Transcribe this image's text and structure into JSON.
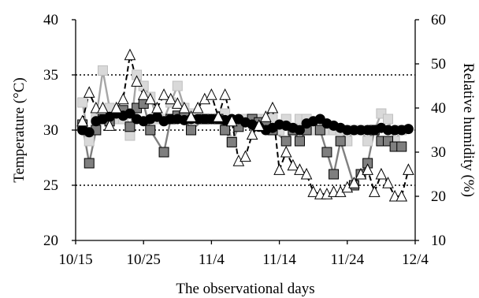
{
  "chart_data": {
    "type": "line",
    "xlabel": "The observational days",
    "ylabel": "Temperature (°C)",
    "y2label": "Relative humidity (%)",
    "x_ticks": [
      "10/15",
      "10/25",
      "11/4",
      "11/14",
      "11/24",
      "12/4"
    ],
    "y_ticks": [
      "20",
      "25",
      "30",
      "35",
      "40"
    ],
    "y2_ticks": [
      "10",
      "20",
      "30",
      "40",
      "50",
      "60"
    ],
    "xlim": [
      0,
      50
    ],
    "ylim": [
      20,
      40
    ],
    "y2lim": [
      10,
      60
    ],
    "reference_lines_temperature": [
      25,
      30,
      35
    ],
    "grid": false,
    "series": [
      {
        "axis": "temperature",
        "marker": "circle",
        "line_style": "solid",
        "color": "#000000",
        "x": [
          1,
          2,
          3,
          4,
          5,
          6,
          7,
          8,
          9,
          10,
          11,
          12,
          13,
          14,
          15,
          16,
          17,
          18,
          19,
          20,
          21,
          22,
          23,
          24,
          25,
          26,
          27,
          28,
          29,
          30,
          31,
          32,
          33,
          34,
          35,
          36,
          37,
          38,
          39,
          40,
          41,
          42,
          43,
          44,
          45,
          46,
          47,
          48,
          49
        ],
        "y": [
          30.0,
          29.8,
          30.8,
          31.0,
          31.2,
          31.5,
          31.3,
          31.5,
          31.0,
          30.8,
          31.0,
          31.2,
          30.8,
          31.0,
          31.0,
          30.9,
          31.0,
          31.0,
          31.0,
          31.0,
          31.0,
          30.9,
          31.0,
          31.0,
          30.7,
          30.5,
          30.3,
          30.0,
          30.2,
          30.5,
          30.4,
          30.2,
          30.0,
          30.6,
          30.8,
          31.0,
          30.6,
          30.4,
          30.2,
          30.0,
          30.0,
          30.0,
          30.0,
          30.0,
          30.2,
          30.0,
          30.0,
          30.0,
          30.1
        ]
      },
      {
        "axis": "temperature",
        "marker": "square",
        "line_style": "solid",
        "color": "#808080",
        "x": [
          1,
          2,
          3,
          4,
          5,
          7,
          8,
          9,
          10,
          11,
          13,
          14,
          15,
          16,
          17,
          19,
          21,
          22,
          23,
          24,
          26,
          27,
          28,
          29,
          31,
          32,
          33,
          34,
          36,
          37,
          38,
          39,
          41,
          42,
          43,
          44,
          45,
          46,
          47,
          48
        ],
        "y": [
          30.5,
          27.0,
          30.0,
          31.0,
          30.8,
          31.8,
          30.3,
          32.0,
          32.4,
          30.0,
          28.0,
          31.0,
          31.3,
          31.2,
          30.0,
          31.0,
          31.0,
          30.0,
          28.9,
          30.3,
          31.0,
          30.7,
          30.4,
          30.0,
          29.0,
          30.0,
          29.0,
          30.0,
          30.0,
          28.0,
          26.0,
          29.0,
          25.0,
          26.0,
          27.0,
          30.0,
          29.0,
          29.0,
          28.5,
          28.5
        ]
      },
      {
        "axis": "temperature",
        "marker": "square-light",
        "line_style": "solid",
        "color": "#a6a6a6",
        "x": [
          1,
          2,
          3,
          4,
          5,
          6,
          7,
          8,
          9,
          10,
          11,
          12,
          13,
          14,
          15,
          16,
          17,
          18,
          19,
          20,
          21,
          22,
          23,
          24,
          25,
          26,
          27,
          28,
          29,
          30,
          31,
          32,
          33,
          34,
          35,
          36,
          37,
          38,
          39,
          40,
          41,
          42,
          43,
          44,
          45,
          46,
          47,
          48
        ],
        "y": [
          32.5,
          29.0,
          31.0,
          35.4,
          32.0,
          31.0,
          31.0,
          29.5,
          35.0,
          34.0,
          33.0,
          31.0,
          31.0,
          32.5,
          34.0,
          32.0,
          31.5,
          31.0,
          31.0,
          31.0,
          31.0,
          31.5,
          29.0,
          30.5,
          31.0,
          31.0,
          31.0,
          31.0,
          31.0,
          30.0,
          31.0,
          30.0,
          31.0,
          31.0,
          30.0,
          30.0,
          30.0,
          30.0,
          30.0,
          29.0,
          30.0,
          30.0,
          29.0,
          30.0,
          31.5,
          31.0,
          29.0,
          30.0
        ]
      },
      {
        "axis": "humidity",
        "marker": "triangle",
        "line_style": "dashed",
        "color": "#000000",
        "x": [
          1,
          2,
          3,
          4,
          5,
          6,
          7,
          8,
          9,
          10,
          11,
          12,
          13,
          14,
          15,
          16,
          17,
          18,
          19,
          20,
          21,
          22,
          23,
          24,
          25,
          26,
          27,
          28,
          29,
          30,
          31,
          32,
          33,
          34,
          35,
          36,
          37,
          38,
          39,
          40,
          41,
          42,
          43,
          44,
          45,
          46,
          47,
          48,
          49
        ],
        "y": [
          37.0,
          43.5,
          40.0,
          40.0,
          36.0,
          40.0,
          42.0,
          52.0,
          46.0,
          43.0,
          42.0,
          40.0,
          43.0,
          42.0,
          41.0,
          40.0,
          38.0,
          40.0,
          42.0,
          43.0,
          38.0,
          43.0,
          37.0,
          28.0,
          29.0,
          34.0,
          36.0,
          38.0,
          40.0,
          26.0,
          30.0,
          27.0,
          26.0,
          25.0,
          21.0,
          20.5,
          20.5,
          21.0,
          21.0,
          22.0,
          23.0,
          25.0,
          26.0,
          21.0,
          25.0,
          23.0,
          20.0,
          20.0,
          26.0
        ]
      }
    ]
  }
}
